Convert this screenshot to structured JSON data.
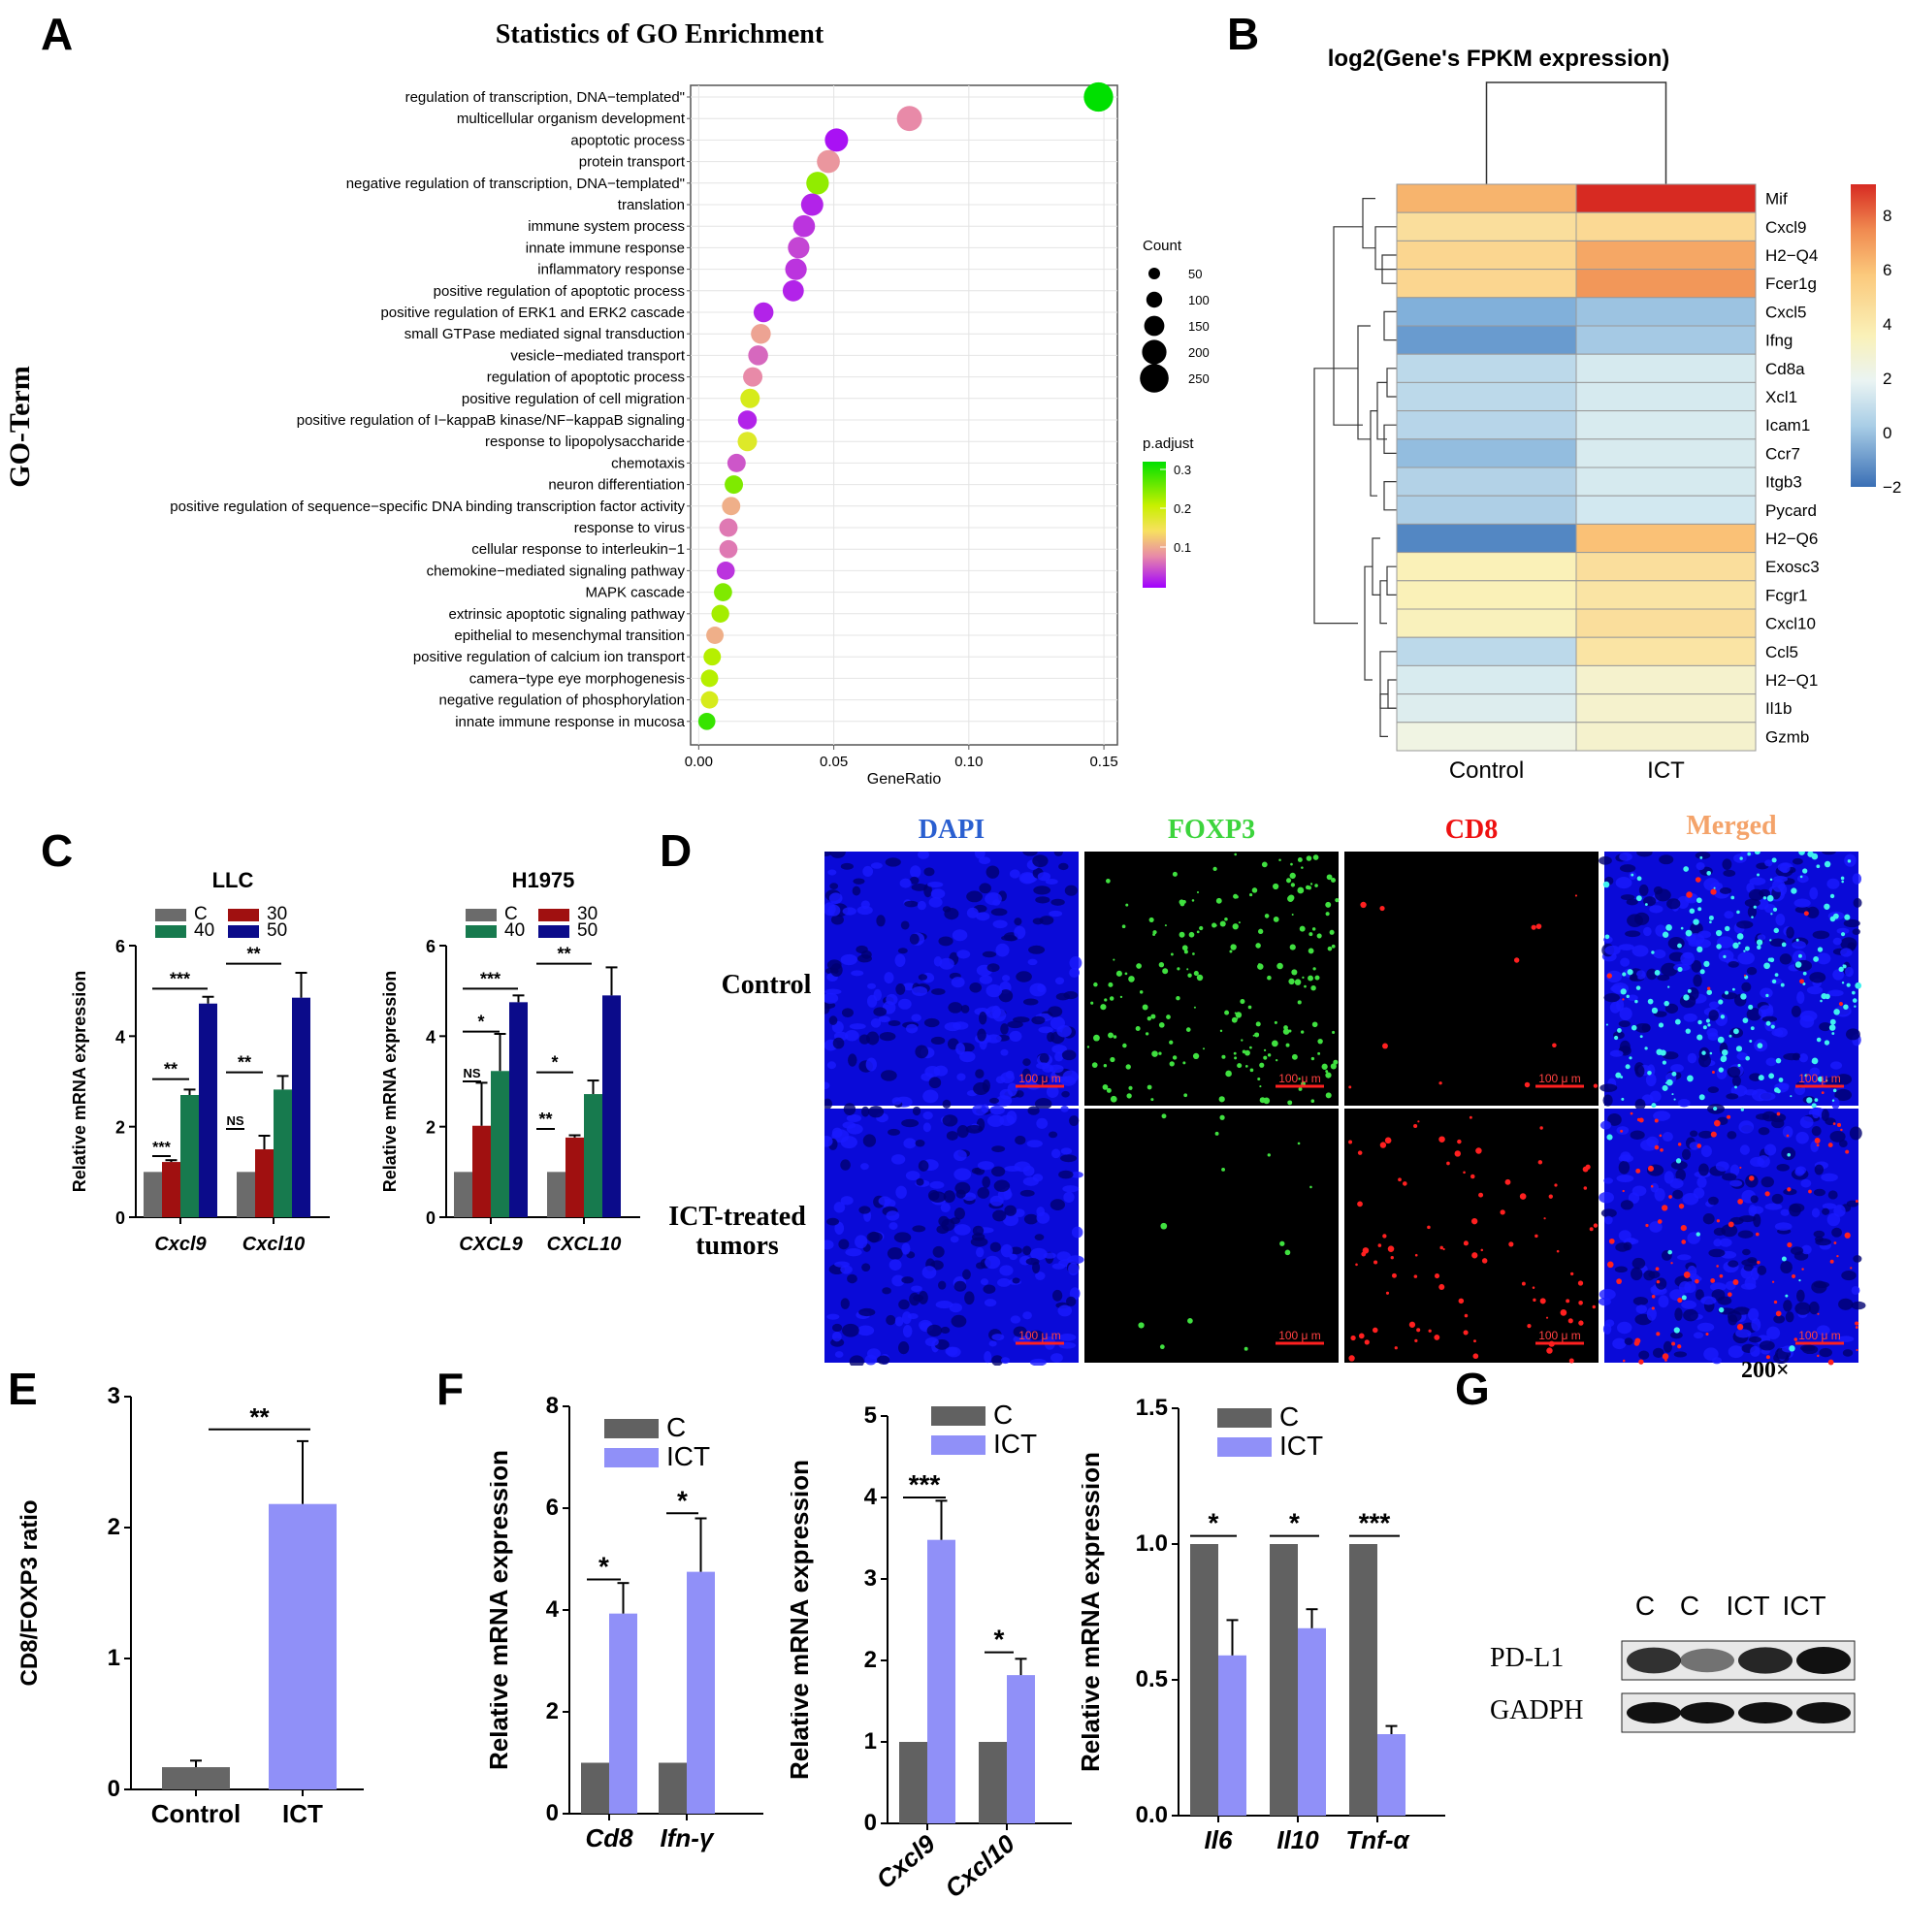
{
  "panel_labels": {
    "A": "A",
    "B": "B",
    "C": "C",
    "D": "D",
    "E": "E",
    "F": "F",
    "G": "G"
  },
  "panelA": {
    "title": "Statistics of GO Enrichment",
    "ylabel": "GO-Term",
    "xlabel": "GeneRatio",
    "xticks": [
      "0.00",
      "0.05",
      "0.10",
      "0.15"
    ],
    "legend_count_title": "Count",
    "legend_count_values": [
      "50",
      "100",
      "150",
      "200",
      "250"
    ],
    "legend_padj_title": "p.adjust",
    "legend_padj_values": [
      "0.3",
      "0.2",
      "0.1"
    ]
  },
  "panelB": {
    "title": "log2(Gene's FPKM expression)",
    "columns": [
      "Control",
      "ICT"
    ],
    "colorbar_ticks": [
      "8",
      "6",
      "4",
      "2",
      "0",
      "−2"
    ]
  },
  "panelC": {
    "left_title": "LLC",
    "right_title": "H1975",
    "ylabel": "Relative mRNA expression",
    "legend": [
      "C",
      "30",
      "40",
      "50"
    ],
    "left_genes": [
      "Cxcl9",
      "Cxcl10"
    ],
    "right_genes": [
      "CXCL9",
      "CXCL10"
    ],
    "yticks": [
      "0",
      "2",
      "4",
      "6"
    ],
    "left_sig": [
      "***",
      "**",
      "***",
      "NS",
      "**",
      "**"
    ],
    "right_sig": [
      "NS",
      "*",
      "***",
      "**",
      "*",
      "**"
    ]
  },
  "panelD": {
    "headers": [
      "DAPI",
      "FOXP3",
      "CD8",
      "Merged"
    ],
    "rows": [
      "Control",
      "ICT-treated tumors"
    ],
    "scale": "100 μ m",
    "magnification": "200×"
  },
  "panelE": {
    "ylabel": "CD8/FOXP3 ratio",
    "categories": [
      "Control",
      "ICT"
    ],
    "yticks": [
      "0",
      "1",
      "2",
      "3"
    ],
    "sig": "**"
  },
  "panelF": {
    "ylabel": "Relative mRNA expression",
    "legend": [
      "C",
      "ICT"
    ],
    "chart1": {
      "genes": [
        "Cd8",
        "Ifn-γ"
      ],
      "yticks": [
        "0",
        "2",
        "4",
        "6",
        "8"
      ],
      "sig": [
        "*",
        "*"
      ]
    },
    "chart2": {
      "genes": [
        "Cxcl9",
        "Cxcl10"
      ],
      "yticks": [
        "0",
        "1",
        "2",
        "3",
        "4",
        "5"
      ],
      "sig": [
        "***",
        "*"
      ]
    },
    "chart3": {
      "genes": [
        "Il6",
        "Il10",
        "Tnf-α"
      ],
      "yticks": [
        "0.0",
        "0.5",
        "1.0",
        "1.5"
      ],
      "sig": [
        "*",
        "*",
        "***"
      ]
    }
  },
  "panelG": {
    "lanes": [
      "C",
      "C",
      "ICT",
      "ICT"
    ],
    "bands": [
      "PD-L1",
      "GADPH"
    ]
  },
  "chart_data": [
    {
      "type": "scatter",
      "title": "Statistics of GO Enrichment",
      "xlabel": "GeneRatio",
      "ylabel": "GO-Term",
      "xlim": [
        0,
        0.15
      ],
      "terms": [
        {
          "term": "regulation of transcription, DNA−templated\"",
          "ratio": 0.148,
          "count": 210,
          "padj": 0.33
        },
        {
          "term": "multicellular organism development",
          "ratio": 0.078,
          "count": 120,
          "padj": 0.08
        },
        {
          "term": "apoptotic process",
          "ratio": 0.051,
          "count": 90,
          "padj": 0.01
        },
        {
          "term": "protein transport",
          "ratio": 0.048,
          "count": 85,
          "padj": 0.09
        },
        {
          "term": "negative regulation of transcription, DNA−templated\"",
          "ratio": 0.044,
          "count": 80,
          "padj": 0.25
        },
        {
          "term": "translation",
          "ratio": 0.042,
          "count": 75,
          "padj": 0.02
        },
        {
          "term": "immune system process",
          "ratio": 0.039,
          "count": 70,
          "padj": 0.03
        },
        {
          "term": "innate immune response",
          "ratio": 0.037,
          "count": 65,
          "padj": 0.04
        },
        {
          "term": "inflammatory response",
          "ratio": 0.036,
          "count": 65,
          "padj": 0.03
        },
        {
          "term": "positive regulation of apoptotic process",
          "ratio": 0.035,
          "count": 60,
          "padj": 0.02
        },
        {
          "term": "positive regulation of ERK1 and ERK2 cascade",
          "ratio": 0.024,
          "count": 45,
          "padj": 0.02
        },
        {
          "term": "small GTPase mediated signal transduction",
          "ratio": 0.023,
          "count": 45,
          "padj": 0.1
        },
        {
          "term": "vesicle−mediated transport",
          "ratio": 0.022,
          "count": 45,
          "padj": 0.06
        },
        {
          "term": "regulation of apoptotic process",
          "ratio": 0.02,
          "count": 40,
          "padj": 0.08
        },
        {
          "term": "positive regulation of cell migration",
          "ratio": 0.019,
          "count": 40,
          "padj": 0.2
        },
        {
          "term": "positive regulation of I−kappaB kinase/NF−kappaB signaling",
          "ratio": 0.018,
          "count": 35,
          "padj": 0.02
        },
        {
          "term": "response to lipopolysaccharide",
          "ratio": 0.018,
          "count": 40,
          "padj": 0.19
        },
        {
          "term": "chemotaxis",
          "ratio": 0.014,
          "count": 30,
          "padj": 0.05
        },
        {
          "term": "neuron differentiation",
          "ratio": 0.013,
          "count": 30,
          "padj": 0.26
        },
        {
          "term": "positive regulation of sequence−specific DNA binding transcription factor activity",
          "ratio": 0.012,
          "count": 30,
          "padj": 0.11
        },
        {
          "term": "response to virus",
          "ratio": 0.011,
          "count": 30,
          "padj": 0.07
        },
        {
          "term": "cellular response to interleukin−1",
          "ratio": 0.011,
          "count": 28,
          "padj": 0.07
        },
        {
          "term": "chemokine−mediated signaling pathway",
          "ratio": 0.01,
          "count": 28,
          "padj": 0.03
        },
        {
          "term": "MAPK cascade",
          "ratio": 0.009,
          "count": 28,
          "padj": 0.26
        },
        {
          "term": "extrinsic apoptotic signaling pathway",
          "ratio": 0.008,
          "count": 25,
          "padj": 0.24
        },
        {
          "term": "epithelial to mesenchymal transition",
          "ratio": 0.006,
          "count": 22,
          "padj": 0.11
        },
        {
          "term": "positive regulation of calcium ion transport",
          "ratio": 0.005,
          "count": 22,
          "padj": 0.23
        },
        {
          "term": "camera−type eye morphogenesis",
          "ratio": 0.004,
          "count": 22,
          "padj": 0.23
        },
        {
          "term": "negative regulation of phosphorylation",
          "ratio": 0.004,
          "count": 22,
          "padj": 0.2
        },
        {
          "term": "innate immune response in mucosa",
          "ratio": 0.003,
          "count": 20,
          "padj": 0.3
        }
      ]
    },
    {
      "type": "heatmap",
      "title": "log2(Gene's FPKM expression)",
      "columns": [
        "Control",
        "ICT"
      ],
      "rows": [
        "Mif",
        "Cxcl9",
        "H2−Q4",
        "Fcer1g",
        "Cxcl5",
        "Ifng",
        "Cd8a",
        "Xcl1",
        "Icam1",
        "Ccr7",
        "Itgb3",
        "Pycard",
        "H2−Q6",
        "Exosc3",
        "Fcgr1",
        "Cxcl10",
        "Ccl5",
        "H2−Q1",
        "Il1b",
        "Gzmb"
      ],
      "values": [
        [
          6.5,
          9.5
        ],
        [
          5.2,
          5.4
        ],
        [
          5.5,
          6.8
        ],
        [
          5.5,
          7.2
        ],
        [
          0.2,
          0.8
        ],
        [
          -0.5,
          1.0
        ],
        [
          1.5,
          2.2
        ],
        [
          1.5,
          2.2
        ],
        [
          1.4,
          2.3
        ],
        [
          0.6,
          2.3
        ],
        [
          1.3,
          2.2
        ],
        [
          1.2,
          2.0
        ],
        [
          -1.2,
          6.2
        ],
        [
          4.5,
          5.2
        ],
        [
          4.5,
          5.0
        ],
        [
          4.4,
          5.2
        ],
        [
          1.5,
          5.0
        ],
        [
          2.3,
          4.0
        ],
        [
          2.5,
          4.0
        ],
        [
          3.5,
          4.0
        ]
      ],
      "clim": [
        -2,
        9
      ]
    },
    {
      "type": "bar",
      "title": "LLC",
      "categories": [
        "Cxcl9",
        "Cxcl10"
      ],
      "series": [
        {
          "name": "C",
          "values": [
            1.0,
            1.0
          ],
          "err": [
            0,
            0
          ]
        },
        {
          "name": "30",
          "values": [
            1.22,
            1.5
          ],
          "err": [
            0.04,
            0.3
          ]
        },
        {
          "name": "40",
          "values": [
            2.7,
            2.82
          ],
          "err": [
            0.12,
            0.3
          ]
        },
        {
          "name": "50",
          "values": [
            4.72,
            4.85
          ],
          "err": [
            0.15,
            0.55
          ]
        }
      ],
      "ylabel": "Relative mRNA expression",
      "ylim": [
        0,
        6
      ]
    },
    {
      "type": "bar",
      "title": "H1975",
      "categories": [
        "CXCL9",
        "CXCL10"
      ],
      "series": [
        {
          "name": "C",
          "values": [
            1.0,
            1.0
          ],
          "err": [
            0,
            0
          ]
        },
        {
          "name": "30",
          "values": [
            2.02,
            1.76
          ],
          "err": [
            0.95,
            0.05
          ]
        },
        {
          "name": "40",
          "values": [
            3.23,
            2.72
          ],
          "err": [
            0.82,
            0.3
          ]
        },
        {
          "name": "50",
          "values": [
            4.75,
            4.9
          ],
          "err": [
            0.15,
            0.62
          ]
        }
      ],
      "ylabel": "Relative mRNA expression",
      "ylim": [
        0,
        6
      ]
    },
    {
      "type": "bar",
      "categories": [
        "Control",
        "ICT"
      ],
      "values": [
        0.17,
        2.18
      ],
      "err": [
        0.05,
        0.48
      ],
      "ylabel": "CD8/FOXP3 ratio",
      "ylim": [
        0,
        3
      ]
    },
    {
      "type": "bar",
      "categories": [
        "Cd8",
        "Ifn-γ"
      ],
      "series": [
        {
          "name": "C",
          "values": [
            1.0,
            1.0
          ],
          "err": [
            0,
            0
          ]
        },
        {
          "name": "ICT",
          "values": [
            3.93,
            4.75
          ],
          "err": [
            0.6,
            1.05
          ]
        }
      ],
      "ylabel": "Relative mRNA expression",
      "ylim": [
        0,
        8
      ]
    },
    {
      "type": "bar",
      "categories": [
        "Cxcl9",
        "Cxcl10"
      ],
      "series": [
        {
          "name": "C",
          "values": [
            1.0,
            1.0
          ],
          "err": [
            0,
            0
          ]
        },
        {
          "name": "ICT",
          "values": [
            3.48,
            1.82
          ],
          "err": [
            0.48,
            0.2
          ]
        }
      ],
      "ylabel": "Relative mRNA expression",
      "ylim": [
        0,
        5
      ]
    },
    {
      "type": "bar",
      "categories": [
        "Il6",
        "Il10",
        "Tnf-α"
      ],
      "series": [
        {
          "name": "C",
          "values": [
            1.0,
            1.0,
            1.0
          ],
          "err": [
            0,
            0,
            0
          ]
        },
        {
          "name": "ICT",
          "values": [
            0.59,
            0.69,
            0.3
          ],
          "err": [
            0.13,
            0.07,
            0.03
          ]
        }
      ],
      "ylabel": "Relative mRNA expression",
      "ylim": [
        0,
        1.5
      ]
    }
  ]
}
